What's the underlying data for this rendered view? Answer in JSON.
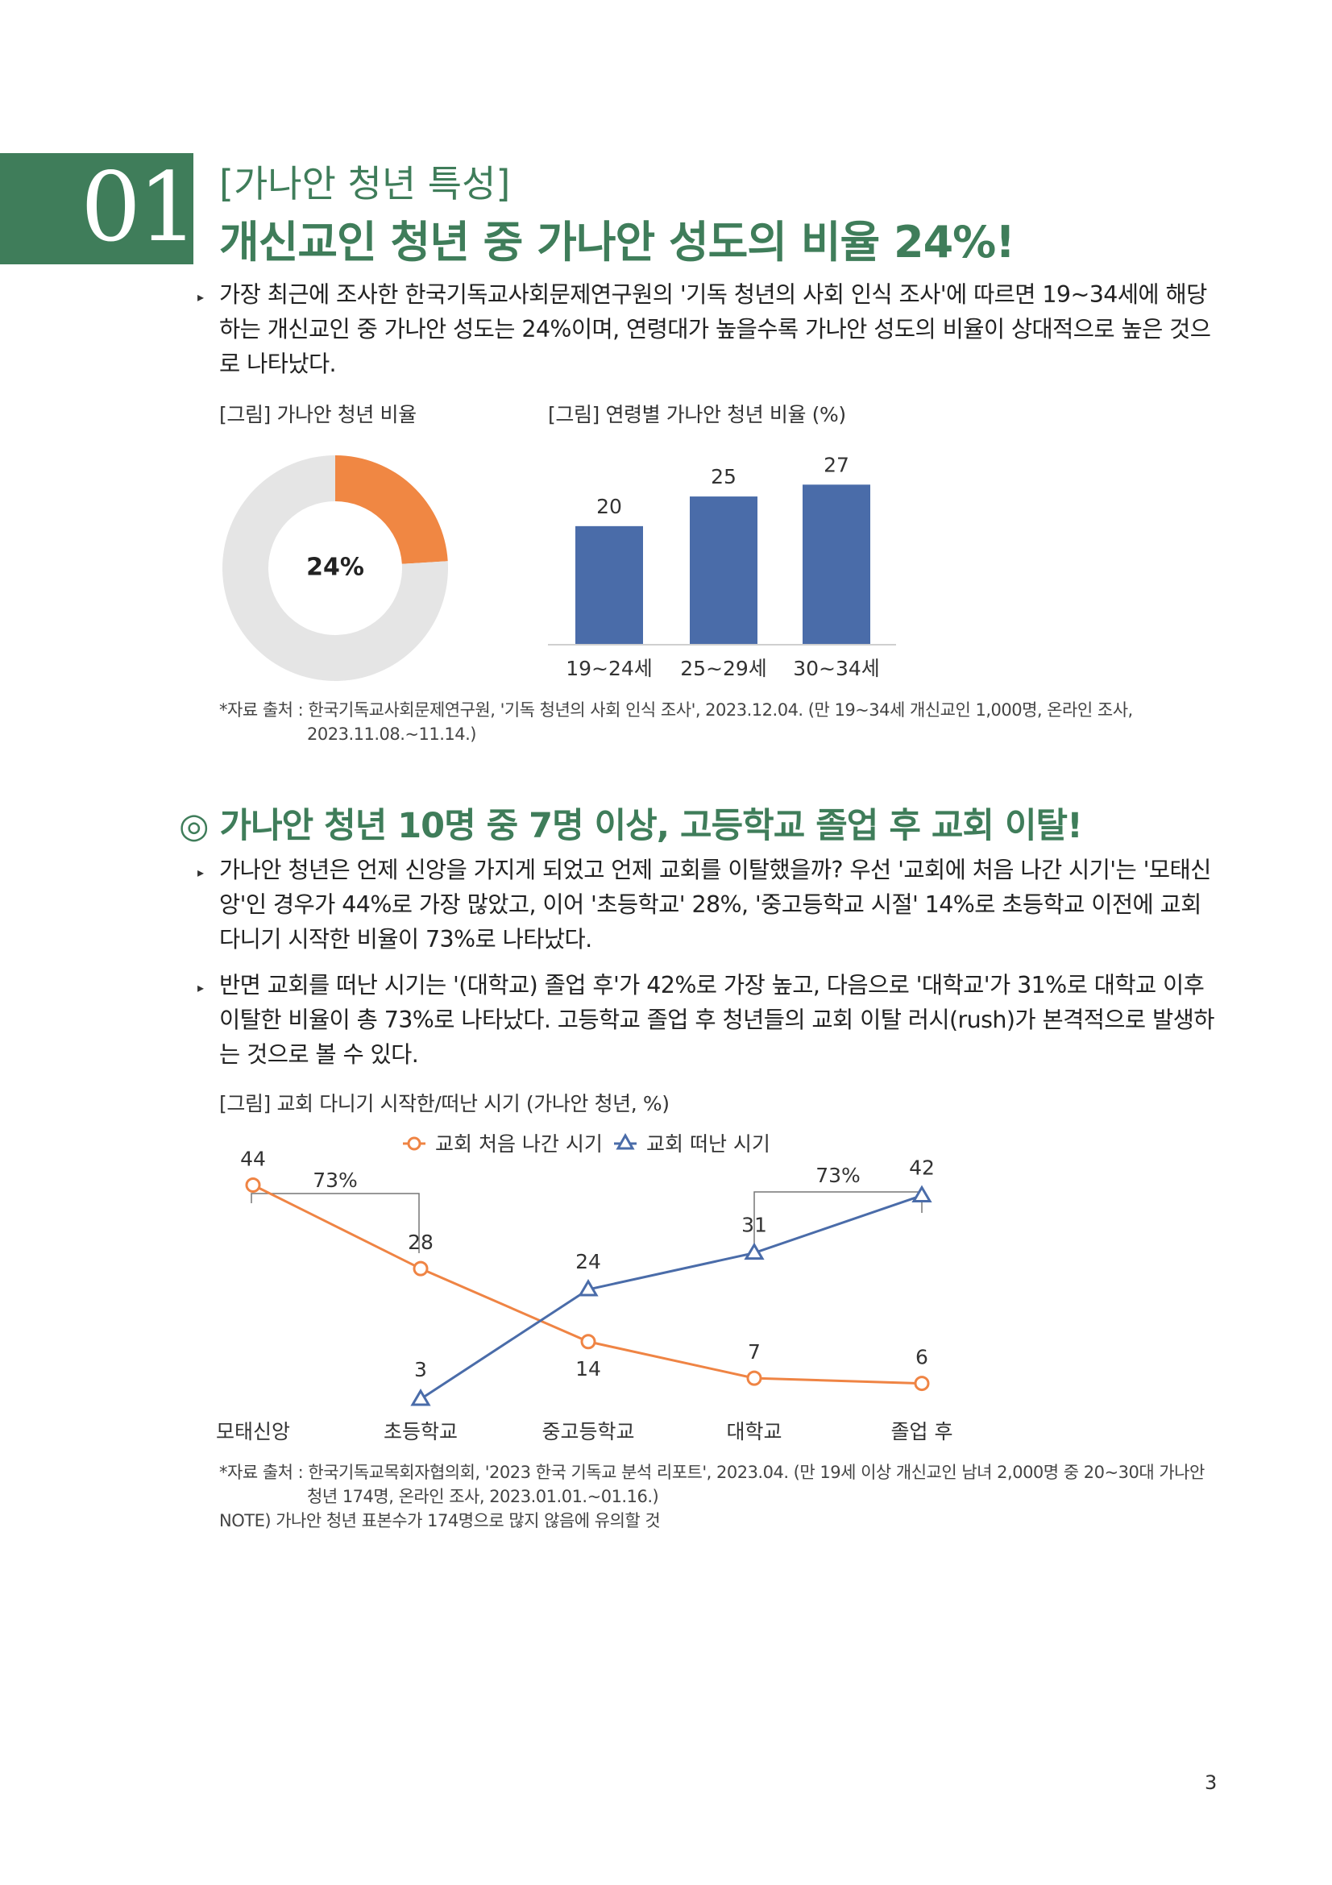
{
  "section": {
    "number": "01",
    "subtitle": "[가나안 청년 특성]",
    "title": "개신교인 청년 중 가나안 성도의 비율 24%!"
  },
  "para1": "가장 최근에 조사한 한국기독교사회문제연구원의 '기독 청년의 사회 인식 조사'에 따르면 19~34세에 해당하는 개신교인 중 가나안 성도는 24%이며, 연령대가 높을수록 가나안 성도의 비율이 상대적으로 높은 것으로 나타났다.",
  "fig1": {
    "caption": "[그림] 가나안 청년 비율",
    "center_label": "24%"
  },
  "fig2": {
    "caption": "[그림] 연령별 가나안 청년 비율 (%)"
  },
  "source1": [
    "*자료 출처 : 한국기독교사회문제연구원, '기독 청년의 사회 인식 조사', 2023.12.04. (만 19~34세 개신교인 1,000명, 온라인 조사,",
    "2023.11.08.~11.14.)"
  ],
  "subheading": {
    "symbol": "◎",
    "text": "가나안 청년 10명 중 7명 이상, 고등학교 졸업 후 교회 이탈!"
  },
  "para2": "가나안 청년은 언제 신앙을 가지게 되었고 언제 교회를 이탈했을까? 우선 '교회에 처음 나간 시기'는 '모태신앙'인 경우가 44%로 가장 많았고, 이어 '초등학교' 28%, '중고등학교 시절' 14%로 초등학교 이전에 교회 다니기 시작한 비율이 73%로 나타났다.",
  "para3": "반면 교회를 떠난 시기는 '(대학교) 졸업 후'가 42%로 가장 높고, 다음으로 '대학교'가 31%로 대학교 이후 이탈한 비율이 총 73%로 나타났다. 고등학교 졸업 후 청년들의 교회 이탈 러시(rush)가 본격적으로 발생하는 것으로 볼 수 있다.",
  "fig3": {
    "caption": "[그림] 교회 다니기 시작한/떠난 시기 (가나안 청년, %)",
    "bracket_left": "73%",
    "bracket_right": "73%"
  },
  "source2": [
    "*자료 출처 : 한국기독교목회자협의회, '2023 한국 기독교 분석 리포트', 2023.04. (만 19세 이상 개신교인 남녀 2,000명 중 20~30대 가나안",
    "청년 174명, 온라인 조사, 2023.01.01.~01.16.)",
    "NOTE) 가나안 청년 표본수가 174명으로 많지 않음에 유의할 것"
  ],
  "page_number": "3",
  "chart_data": [
    {
      "type": "pie",
      "variant": "donut",
      "slices": [
        {
          "label": "가나안 청년",
          "value": 24,
          "color": "#f08743"
        },
        {
          "label": "",
          "value": 76,
          "color": "#e5e5e5"
        }
      ]
    },
    {
      "type": "bar",
      "categories": [
        "19~24세",
        "25~29세",
        "30~34세"
      ],
      "values": [
        20,
        25,
        27
      ],
      "ylim": [
        0,
        28
      ],
      "color": "#4a6ca9"
    },
    {
      "type": "line",
      "categories": [
        "모태신앙",
        "초등학교",
        "중고등학교",
        "대학교",
        "졸업 후"
      ],
      "legend_position": "top-center",
      "series": [
        {
          "name": "교회 처음 나간 시기",
          "marker": "circle",
          "color": "#ef8444",
          "values": [
            44,
            28,
            14,
            7,
            6
          ]
        },
        {
          "name": "교회 떠난 시기",
          "marker": "triangle",
          "color": "#4a6ca9",
          "values": [
            null,
            3,
            24,
            31,
            42
          ]
        }
      ],
      "ylim": [
        0,
        50
      ]
    }
  ]
}
